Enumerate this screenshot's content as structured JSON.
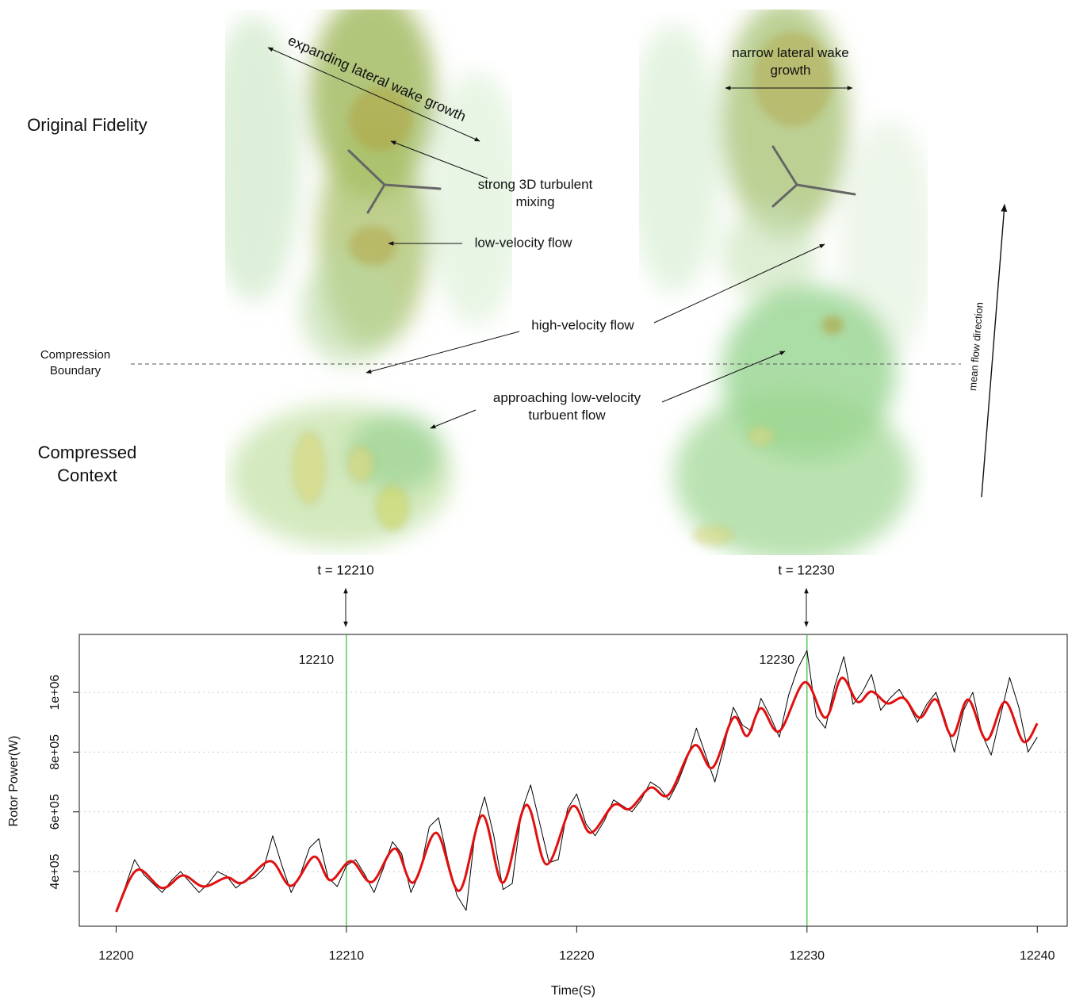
{
  "figure": {
    "row_labels": [
      "Original Fidelity",
      "Compressed Context"
    ],
    "boundary_label": "Compression Boundary",
    "annotations": [
      "expanding lateral wake growth",
      "strong 3D turbulent mixing",
      "low-velocity flow",
      "high-velocity flow",
      "approaching low-velocity turbuent flow",
      "narrow lateral wake growth",
      "mean flow direction"
    ],
    "time_labels": [
      "t = 12210",
      "t = 12230"
    ]
  },
  "chart_data": {
    "type": "line",
    "x_label": "Time(S)",
    "y_label": "Rotor Power(W)",
    "xlim": [
      12198.4,
      12241.3
    ],
    "ylim": [
      217000,
      1194000
    ],
    "xticks": [
      12200,
      12210,
      12220,
      12230,
      12240
    ],
    "yticks": [
      {
        "value": 400000,
        "label": "4e+05"
      },
      {
        "value": 600000,
        "label": "6e+05"
      },
      {
        "value": 800000,
        "label": "8e+05"
      },
      {
        "value": 1000000,
        "label": "1e+06"
      }
    ],
    "grid": true,
    "markers": [
      12210,
      12230
    ],
    "marker_color": "#33bb33",
    "series": [
      {
        "color": "#000000",
        "x": [
          12200,
          12200.4,
          12200.8,
          12201.2,
          12201.6,
          12202,
          12202.4,
          12202.8,
          12203.2,
          12203.6,
          12204,
          12204.4,
          12204.8,
          12205.2,
          12205.6,
          12206,
          12206.4,
          12206.8,
          12207.2,
          12207.6,
          12208,
          12208.4,
          12208.8,
          12209.2,
          12209.6,
          12210,
          12210.4,
          12210.8,
          12211.2,
          12211.6,
          12212,
          12212.4,
          12212.8,
          12213.2,
          12213.6,
          12214,
          12214.4,
          12214.8,
          12215.2,
          12215.6,
          12216,
          12216.4,
          12216.8,
          12217.2,
          12217.6,
          12218,
          12218.4,
          12218.8,
          12219.2,
          12219.6,
          12220,
          12220.4,
          12220.8,
          12221.2,
          12221.6,
          12222,
          12222.4,
          12222.8,
          12223.2,
          12223.6,
          12224,
          12224.4,
          12224.8,
          12225.2,
          12225.6,
          12226,
          12226.4,
          12226.8,
          12227.2,
          12227.6,
          12228,
          12228.4,
          12228.8,
          12229.2,
          12229.6,
          12230,
          12230.4,
          12230.8,
          12231.2,
          12231.6,
          12232,
          12232.4,
          12232.8,
          12233.2,
          12233.6,
          12234,
          12234.4,
          12234.8,
          12235.2,
          12235.6,
          12236,
          12236.4,
          12236.8,
          12237.2,
          12237.6,
          12238,
          12238.4,
          12238.8,
          12239.2,
          12239.6,
          12240
        ],
        "values": [
          270000,
          350000,
          440000,
          390000,
          360000,
          330000,
          370000,
          400000,
          365000,
          330000,
          360000,
          400000,
          385000,
          345000,
          370000,
          380000,
          410000,
          520000,
          420000,
          330000,
          390000,
          480000,
          510000,
          380000,
          350000,
          420000,
          440000,
          390000,
          330000,
          410000,
          500000,
          460000,
          330000,
          400000,
          550000,
          580000,
          440000,
          320000,
          270000,
          540000,
          650000,
          520000,
          340000,
          360000,
          600000,
          690000,
          560000,
          430000,
          440000,
          610000,
          660000,
          560000,
          520000,
          570000,
          640000,
          620000,
          600000,
          640000,
          700000,
          680000,
          640000,
          700000,
          780000,
          880000,
          790000,
          700000,
          820000,
          950000,
          890000,
          870000,
          980000,
          920000,
          850000,
          990000,
          1080000,
          1140000,
          920000,
          880000,
          1020000,
          1120000,
          960000,
          1000000,
          1060000,
          940000,
          980000,
          1010000,
          960000,
          900000,
          960000,
          1000000,
          910000,
          800000,
          940000,
          1000000,
          860000,
          790000,
          920000,
          1050000,
          950000,
          800000,
          850000
        ]
      },
      {
        "color": "#e01010",
        "x": [
          12200,
          12200.9,
          12202,
          12202.9,
          12203.8,
          12204.8,
          12205.5,
          12206.7,
          12207.6,
          12208.6,
          12209.3,
          12210.2,
          12211.1,
          12212.1,
          12212.9,
          12213.9,
          12214.9,
          12215.9,
          12216.8,
          12217.8,
          12218.7,
          12219.8,
          12220.6,
          12221.6,
          12222.3,
          12223.2,
          12224,
          12225.1,
          12225.9,
          12226.8,
          12227.4,
          12228,
          12228.8,
          12229.9,
          12230.8,
          12231.5,
          12232.2,
          12232.8,
          12233.5,
          12234.2,
          12234.9,
          12235.6,
          12236.3,
          12237,
          12237.8,
          12238.6,
          12239.4,
          12240
        ],
        "values": [
          265000,
          405000,
          345000,
          387000,
          350000,
          380000,
          363000,
          435000,
          352000,
          450000,
          371000,
          435000,
          365000,
          477000,
          363000,
          530000,
          336000,
          588000,
          363000,
          623000,
          424000,
          618000,
          530000,
          623000,
          610000,
          681000,
          658000,
          822000,
          748000,
          915000,
          854000,
          947000,
          870000,
          1034000,
          915000,
          1048000,
          968000,
          1003000,
          963000,
          981000,
          915000,
          976000,
          854000,
          976000,
          841000,
          968000,
          835000,
          896000
        ]
      }
    ]
  }
}
